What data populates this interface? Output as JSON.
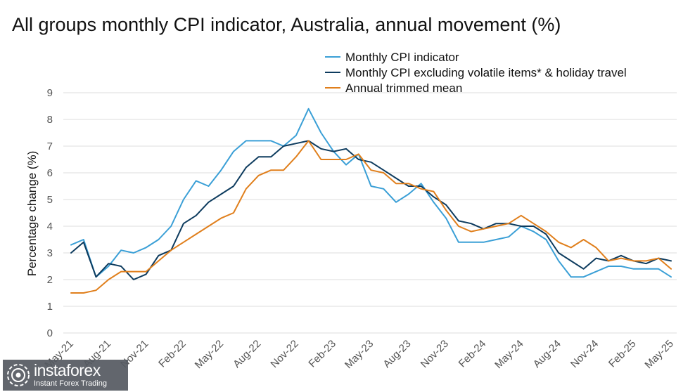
{
  "chart_data": {
    "type": "line",
    "title": "All groups monthly CPI indicator, Australia, annual movement (%)",
    "ylabel": "Percentage change (%)",
    "xlabel": "",
    "ylim": [
      0,
      9
    ],
    "yticks": [
      0,
      1,
      2,
      3,
      4,
      5,
      6,
      7,
      8,
      9
    ],
    "grid": true,
    "legend_position": "top-right",
    "x": [
      "May-21",
      "Jun-21",
      "Jul-21",
      "Aug-21",
      "Sep-21",
      "Oct-21",
      "Nov-21",
      "Dec-21",
      "Jan-22",
      "Feb-22",
      "Mar-22",
      "Apr-22",
      "May-22",
      "Jun-22",
      "Jul-22",
      "Aug-22",
      "Sep-22",
      "Oct-22",
      "Nov-22",
      "Dec-22",
      "Jan-23",
      "Feb-23",
      "Mar-23",
      "Apr-23",
      "May-23",
      "Jun-23",
      "Jul-23",
      "Aug-23",
      "Sep-23",
      "Oct-23",
      "Nov-23",
      "Dec-23",
      "Jan-24",
      "Feb-24",
      "Mar-24",
      "Apr-24",
      "May-24",
      "Jun-24",
      "Jul-24",
      "Aug-24",
      "Sep-24",
      "Oct-24",
      "Nov-24",
      "Dec-24",
      "Jan-25",
      "Feb-25",
      "Mar-25",
      "Apr-25",
      "May-25"
    ],
    "x_tick_labels": [
      "May-21",
      "Aug-21",
      "Nov-21",
      "Feb-22",
      "May-22",
      "Aug-22",
      "Nov-22",
      "Feb-23",
      "May-23",
      "Aug-23",
      "Nov-23",
      "Feb-24",
      "May-24",
      "Aug-24",
      "Nov-24",
      "Feb-25",
      "May-25"
    ],
    "series": [
      {
        "name": "Monthly CPI indicator",
        "color": "#3a9fd6",
        "values": [
          3.3,
          3.5,
          2.1,
          2.5,
          3.1,
          3.0,
          3.2,
          3.5,
          4.0,
          5.0,
          5.7,
          5.5,
          6.1,
          6.8,
          7.2,
          7.2,
          7.2,
          7.0,
          7.4,
          8.4,
          7.5,
          6.8,
          6.3,
          6.7,
          5.5,
          5.4,
          4.9,
          5.2,
          5.6,
          4.9,
          4.3,
          3.4,
          3.4,
          3.4,
          3.5,
          3.6,
          4.0,
          3.8,
          3.5,
          2.7,
          2.1,
          2.1,
          2.3,
          2.5,
          2.5,
          2.4,
          2.4,
          2.4,
          2.1
        ]
      },
      {
        "name": "Monthly CPI excluding volatile items* & holiday travel",
        "color": "#0d3b5e",
        "values": [
          3.0,
          3.4,
          2.1,
          2.6,
          2.5,
          2.0,
          2.2,
          2.9,
          3.1,
          4.1,
          4.4,
          4.9,
          5.2,
          5.5,
          6.2,
          6.6,
          6.6,
          7.0,
          7.1,
          7.2,
          6.9,
          6.8,
          6.9,
          6.5,
          6.4,
          6.1,
          5.8,
          5.5,
          5.5,
          5.1,
          4.8,
          4.2,
          4.1,
          3.9,
          4.1,
          4.1,
          4.0,
          4.0,
          3.7,
          3.0,
          2.7,
          2.4,
          2.8,
          2.7,
          2.9,
          2.7,
          2.6,
          2.8,
          2.7
        ]
      },
      {
        "name": "Annual trimmed mean",
        "color": "#e07f1c",
        "values": [
          1.5,
          1.5,
          1.6,
          2.0,
          2.3,
          2.3,
          2.3,
          2.7,
          3.1,
          3.4,
          3.7,
          4.0,
          4.3,
          4.5,
          5.4,
          5.9,
          6.1,
          6.1,
          6.6,
          7.2,
          6.5,
          6.5,
          6.5,
          6.7,
          6.1,
          6.0,
          5.6,
          5.6,
          5.4,
          5.3,
          4.6,
          4.0,
          3.8,
          3.9,
          4.0,
          4.1,
          4.4,
          4.1,
          3.8,
          3.4,
          3.2,
          3.5,
          3.2,
          2.7,
          2.8,
          2.7,
          2.7,
          2.8,
          2.4
        ]
      }
    ]
  },
  "watermark": {
    "brand": "instaforex",
    "tagline": "Instant Forex Trading"
  }
}
